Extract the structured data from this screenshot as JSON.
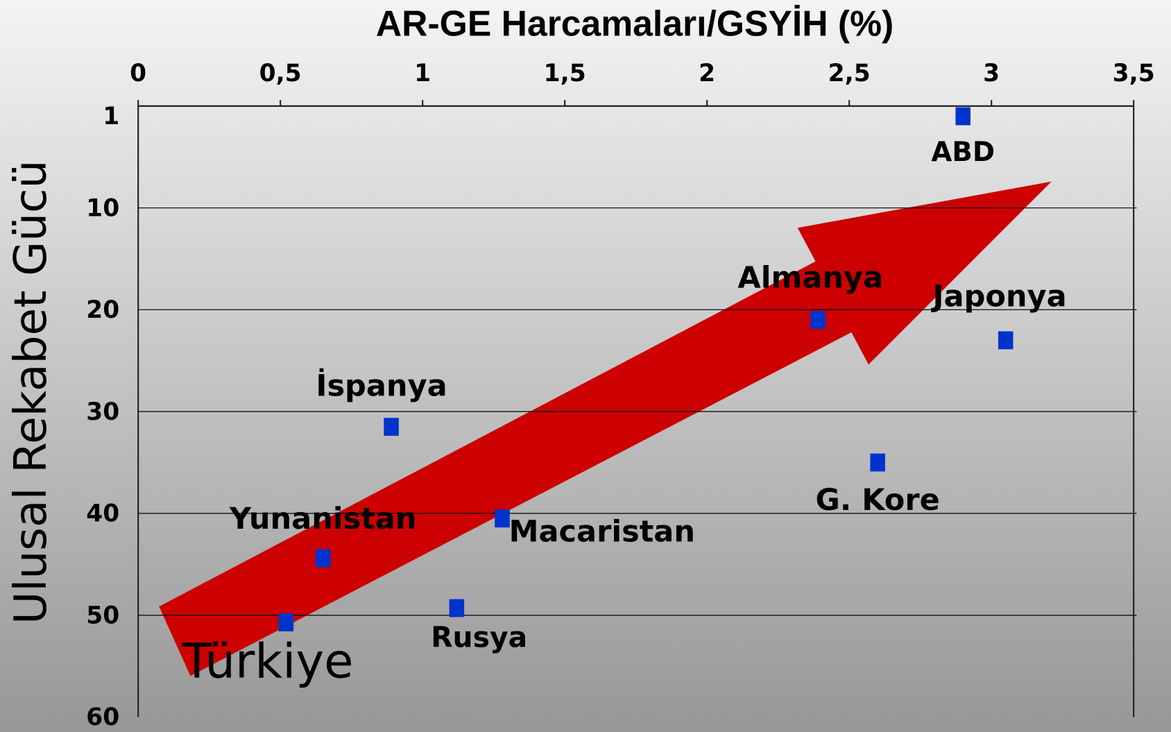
{
  "chart_data": {
    "type": "scatter",
    "title": "AR-GE Harcamaları/GSYİH (%)",
    "y_label": "Ulusal Rekabet Gücü",
    "labels": [
      "ABD",
      "Almanya",
      "Japonya",
      "İspanya",
      "G. Kore",
      "Macaristan",
      "Yunanistan",
      "Rusya",
      "Türkiye"
    ],
    "x": [
      2.9,
      2.39,
      3.05,
      0.89,
      2.6,
      1.28,
      0.65,
      1.12,
      0.52
    ],
    "values": [
      1,
      21,
      23,
      31.5,
      35,
      40.5,
      44.4,
      49.3,
      50.7
    ],
    "color": "#0033cc",
    "xlim": [
      0,
      3.5
    ],
    "xticks": [
      0,
      {
        "value": 0.5,
        "label": "0,5"
      },
      1,
      {
        "value": 1.5,
        "label": "1,5"
      },
      2,
      {
        "value": 2.5,
        "label": "2,5"
      },
      3,
      {
        "value": 3.5,
        "label": "3,5"
      }
    ],
    "ylim": [
      0,
      60
    ],
    "yticks": [
      1,
      10,
      20,
      30,
      40,
      50,
      60
    ],
    "y_inverted": true,
    "grid": true
  }
}
